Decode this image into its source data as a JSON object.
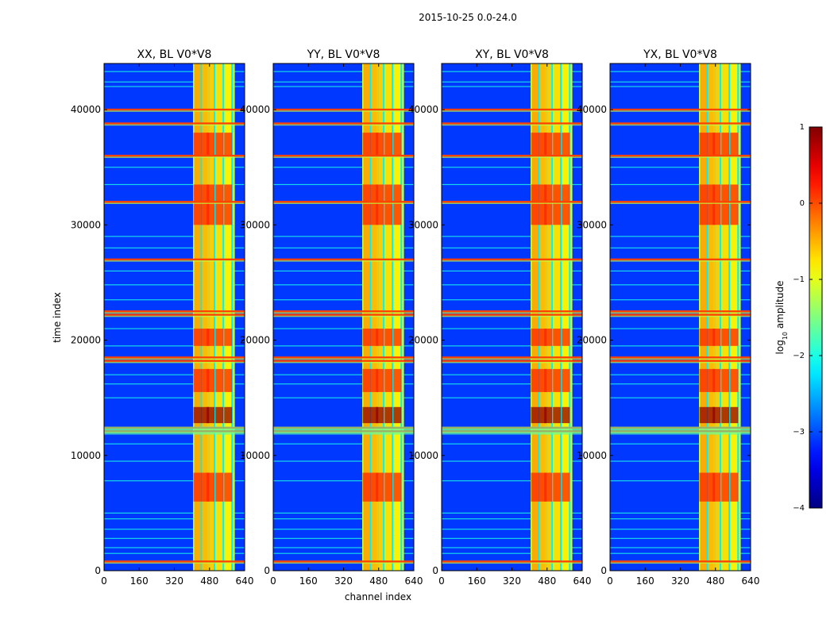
{
  "chart_data": {
    "type": "heatmap",
    "suptitle": "2015-10-25 0.0-24.0",
    "xlabel": "channel index",
    "ylabel": "time index",
    "xlim": [
      0,
      640
    ],
    "ylim": [
      0,
      44000
    ],
    "xticks": [
      0,
      160,
      320,
      480,
      640
    ],
    "xtick_labels": [
      "0",
      "160",
      "320",
      "480",
      "640"
    ],
    "yticks": [
      0,
      10000,
      20000,
      30000,
      40000
    ],
    "ytick_labels": [
      "0",
      "10000",
      "20000",
      "30000",
      "40000"
    ],
    "colormap": "jet",
    "colorbar": {
      "label_prefix": "log",
      "label_sub": "10",
      "label_suffix": " amplitude",
      "range": [
        -4,
        1
      ],
      "ticks": [
        1,
        0,
        -1,
        -2,
        -3,
        -4
      ],
      "tick_labels": [
        "1",
        "0",
        "−1",
        "−2",
        "−3",
        "−4"
      ]
    },
    "panels": [
      {
        "title": "XX, BL V0*V8",
        "product": "XX"
      },
      {
        "title": "YY, BL V0*V8",
        "product": "YY"
      },
      {
        "title": "XY, BL V0*V8",
        "product": "XY"
      },
      {
        "title": "YX, BL V0*V8",
        "product": "YX"
      }
    ],
    "features": {
      "background_log_amplitude": -3.1,
      "band_channels": [
        405,
        595
      ],
      "band_log_amplitude": -1.1,
      "band_stripes": [
        {
          "channel": 425,
          "log_amplitude": -0.4
        },
        {
          "channel": 460,
          "log_amplitude": -0.5
        },
        {
          "channel": 485,
          "log_amplitude": -0.6
        },
        {
          "channel": 525,
          "log_amplitude": -0.7
        },
        {
          "channel": 565,
          "log_amplitude": -0.8
        }
      ],
      "hot_spot_time_ranges": [
        [
          12800,
          14200
        ],
        [
          6000,
          8500
        ],
        [
          15500,
          17500
        ],
        [
          19500,
          21000
        ],
        [
          30000,
          33500
        ],
        [
          36000,
          38000
        ]
      ],
      "rfi_time_lines": [
        800,
        12100,
        12400,
        18200,
        18500,
        22200,
        22500,
        27000,
        32000,
        36000,
        38800,
        40000
      ],
      "minor_time_lines": [
        1500,
        2000,
        2800,
        3600,
        4500,
        5000,
        7800,
        9500,
        11000,
        15000,
        16200,
        17000,
        19500,
        21000,
        23500,
        24800,
        26000,
        28000,
        29000,
        33500,
        35000,
        42000,
        42400,
        43300
      ]
    }
  }
}
